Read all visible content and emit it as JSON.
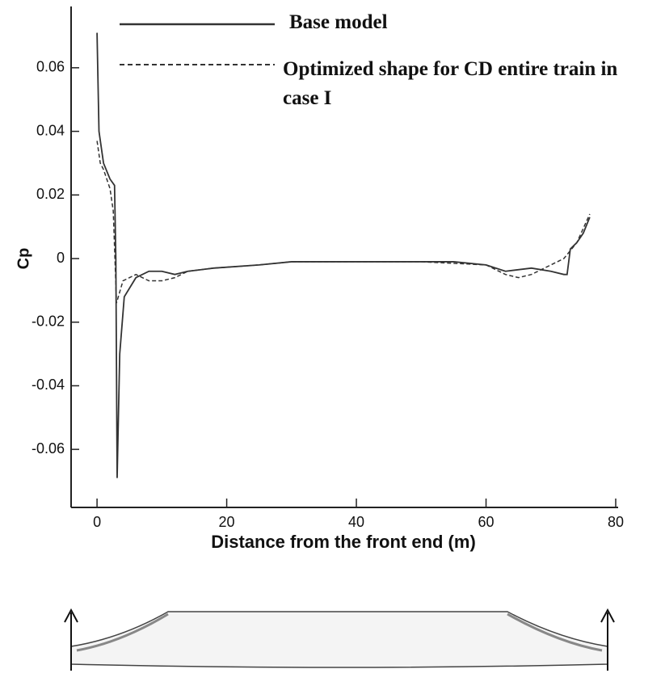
{
  "chart_data": {
    "type": "line",
    "x_label": "Distance from the front end (m)",
    "y_label": "Cp",
    "xlim": [
      -4,
      80
    ],
    "ylim": [
      -0.078,
      0.078
    ],
    "xticks": [
      0,
      20,
      40,
      60,
      80
    ],
    "yticks": [
      -0.06,
      -0.04,
      -0.02,
      0,
      0.02,
      0.04,
      0.06
    ],
    "series": [
      {
        "name": "Base model",
        "color": "#333333",
        "dash": "solid",
        "x": [
          0,
          0.3,
          1,
          2,
          2.7,
          2.9,
          3.1,
          3.5,
          4.2,
          6,
          8,
          10,
          12,
          14,
          18,
          25,
          30,
          40,
          50,
          55,
          60,
          63,
          67,
          70,
          72,
          72.5,
          73,
          74,
          75,
          76
        ],
        "values": [
          0.071,
          0.04,
          0.03,
          0.025,
          0.023,
          0,
          -0.069,
          -0.03,
          -0.012,
          -0.006,
          -0.004,
          -0.004,
          -0.005,
          -0.004,
          -0.003,
          -0.002,
          -0.001,
          -0.001,
          -0.001,
          -0.001,
          -0.002,
          -0.004,
          -0.003,
          -0.004,
          -0.005,
          -0.005,
          0.003,
          0.005,
          0.008,
          0.013
        ]
      },
      {
        "name": "Optimized shape for CD entire train in case I",
        "color": "#333333",
        "dash": "dashed",
        "x": [
          0,
          0.5,
          1,
          2,
          2.5,
          3,
          4,
          6,
          8,
          10,
          12,
          14,
          18,
          25,
          30,
          50,
          60,
          63,
          65,
          67,
          70,
          72,
          74,
          76
        ],
        "values": [
          0.037,
          0.03,
          0.028,
          0.022,
          0.015,
          -0.014,
          -0.007,
          -0.005,
          -0.007,
          -0.007,
          -0.006,
          -0.004,
          -0.003,
          -0.002,
          -0.001,
          -0.001,
          -0.002,
          -0.005,
          -0.006,
          -0.005,
          -0.002,
          0,
          0.005,
          0.014
        ]
      }
    ]
  }
}
